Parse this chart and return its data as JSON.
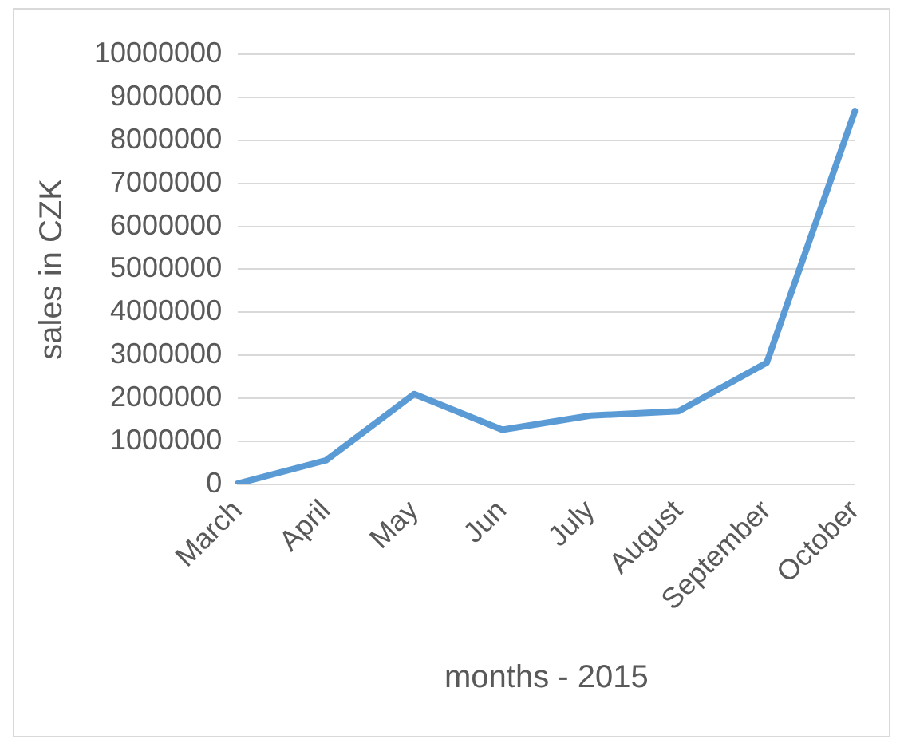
{
  "chart_data": {
    "type": "line",
    "xlabel": "months - 2015",
    "ylabel": "sales in CZK",
    "categories": [
      "March",
      "April",
      "May",
      "Jun",
      "July",
      "August",
      "September",
      "October"
    ],
    "series": [
      {
        "color": "#5b9bd5",
        "values": [
          20000,
          560000,
          2100000,
          1270000,
          1600000,
          1700000,
          2830000,
          8680000
        ]
      }
    ],
    "ylim": [
      0,
      10000000
    ],
    "yticks": [
      0,
      1000000,
      2000000,
      3000000,
      4000000,
      5000000,
      6000000,
      7000000,
      8000000,
      9000000,
      10000000
    ],
    "grid": "y",
    "legend": false,
    "marker": "none",
    "line_style": "solid"
  }
}
